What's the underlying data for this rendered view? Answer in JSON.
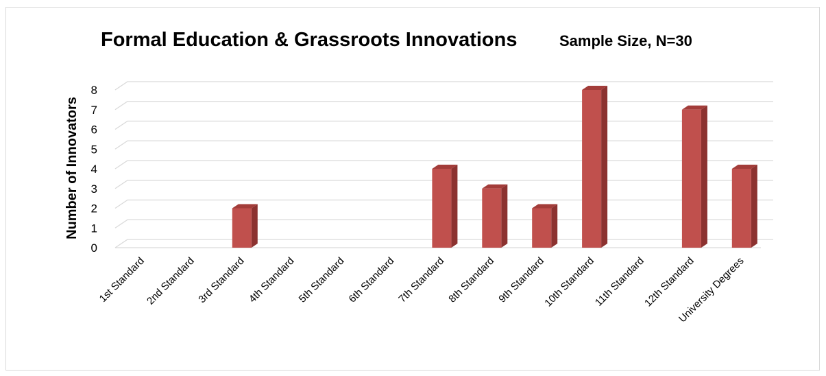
{
  "chart_data": {
    "type": "bar",
    "title": "Formal Education & Grassroots Innovations",
    "subtitle": "Sample Size, N=30",
    "xlabel": "",
    "ylabel": "Number of Innovators",
    "ylim": [
      0,
      8
    ],
    "yticks": [
      0,
      1,
      2,
      3,
      4,
      5,
      6,
      7,
      8
    ],
    "grid": true,
    "legend": "none",
    "categories": [
      "1st Standard",
      "2nd Standard",
      "3rd Standard",
      "4th Standard",
      "5th Standard",
      "6th Standard",
      "7th Standard",
      "8th Standard",
      "9th Standard",
      "10th Standard",
      "11th Standard",
      "12th Standard",
      "University Degrees"
    ],
    "values": [
      0,
      0,
      2,
      0,
      0,
      0,
      4,
      3,
      2,
      8,
      0,
      7,
      4
    ],
    "colors": {
      "bar_front": "#c0504d",
      "bar_side": "#8c3230",
      "bar_top": "#a33d3a",
      "grid": "#d9d9d9"
    }
  }
}
